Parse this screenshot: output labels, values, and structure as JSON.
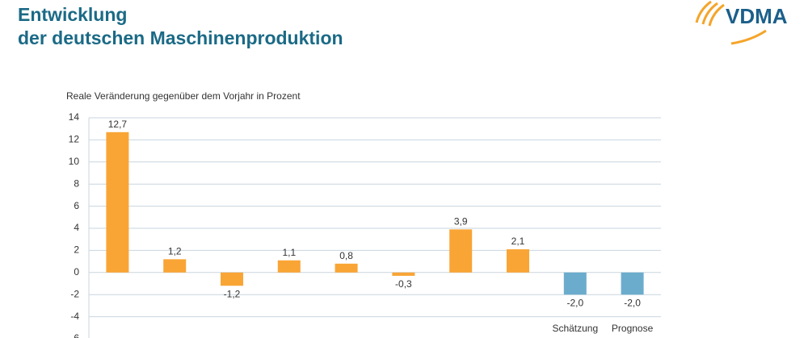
{
  "header": {
    "title_lines": [
      "Entwicklung",
      "der deutschen Maschinenproduktion"
    ],
    "logo": "VDMA"
  },
  "chart_data": {
    "type": "bar",
    "subtitle": "Reale Veränderung gegenüber dem Vorjahr in Prozent",
    "categories": [
      null,
      null,
      null,
      null,
      null,
      null,
      null,
      null,
      "Schätzung",
      "Prognose"
    ],
    "values": [
      12.7,
      1.2,
      -1.2,
      1.1,
      0.8,
      -0.3,
      3.9,
      2.1,
      -2.0,
      -2.0
    ],
    "value_labels": [
      "12,7",
      "1,2",
      "-1,2",
      "1,1",
      "0,8",
      "-0,3",
      "3,9",
      "2,1",
      "-2,0",
      "-2,0"
    ],
    "colors": [
      "#f9a535",
      "#f9a535",
      "#f9a535",
      "#f9a535",
      "#f9a535",
      "#f9a535",
      "#f9a535",
      "#f9a535",
      "#6baccc",
      "#6baccc"
    ],
    "ylim": [
      -6,
      14
    ],
    "yticks": [
      -6,
      -4,
      -2,
      0,
      2,
      4,
      6,
      8,
      10,
      12,
      14
    ],
    "grid": true
  }
}
